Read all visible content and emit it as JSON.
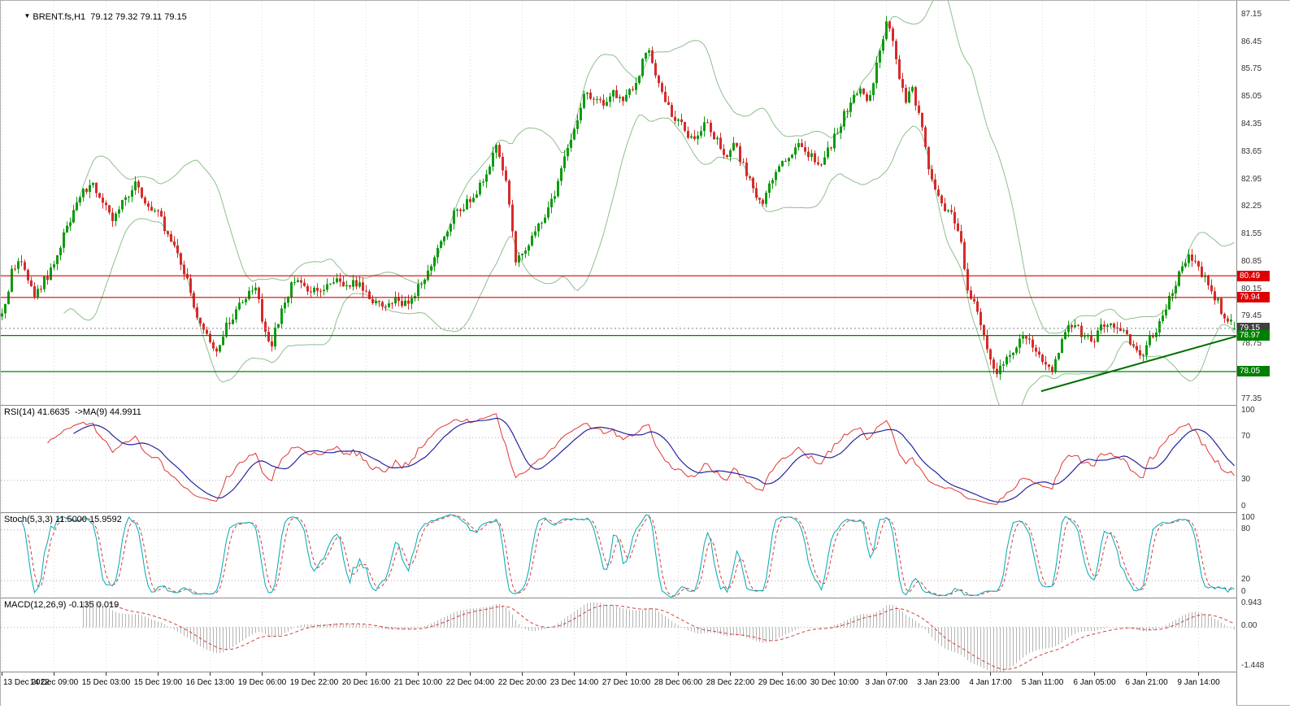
{
  "header": {
    "symbol_line": "BRENT.fs,H1  79.12 79.32 79.11 79.15",
    "dropdown_icon": "▼"
  },
  "colors": {
    "candle_up": "#0f9b10",
    "candle_down": "#d62b2b",
    "bollinger": "#8fbf8f",
    "red_hline": "#dd0000",
    "green_hline": "#008000",
    "trendline": "#007000",
    "rsi_line": "#e03636",
    "rsi_ma": "#24249c",
    "stoch_k": "#00a8b0",
    "stoch_d": "#d04040",
    "macd_hist": "#b4b4b4",
    "macd_signal": "#d04040",
    "grid": "#dcdcdc",
    "current_price_badge": "#3f3f3f"
  },
  "price_axis": {
    "min": 77.2,
    "max": 87.5,
    "labels": [
      "87.15",
      "86.45",
      "85.75",
      "85.05",
      "84.35",
      "83.65",
      "82.95",
      "82.25",
      "81.55",
      "80.85",
      "80.15",
      "79.45",
      "78.75",
      "78.05",
      "77.35"
    ],
    "badges": [
      {
        "text": "80.49",
        "price": 80.49,
        "type": "red"
      },
      {
        "text": "79.94",
        "price": 79.94,
        "type": "red"
      },
      {
        "text": "79.15",
        "price": 79.15,
        "type": "dark"
      },
      {
        "text": "78.97",
        "price": 78.97,
        "type": "green"
      },
      {
        "text": "78.05",
        "price": 78.05,
        "type": "green"
      }
    ]
  },
  "time_axis": {
    "labels": [
      [
        0,
        "13 Dec 2022"
      ],
      [
        16,
        "14 Dec 09:00"
      ],
      [
        32,
        "15 Dec 03:00"
      ],
      [
        48,
        "15 Dec 19:00"
      ],
      [
        64,
        "16 Dec 13:00"
      ],
      [
        80,
        "19 Dec 06:00"
      ],
      [
        96,
        "19 Dec 22:00"
      ],
      [
        112,
        "20 Dec 16:00"
      ],
      [
        128,
        "21 Dec 10:00"
      ],
      [
        144,
        "22 Dec 04:00"
      ],
      [
        160,
        "22 Dec 20:00"
      ],
      [
        176,
        "23 Dec 14:00"
      ],
      [
        192,
        "27 Dec 10:00"
      ],
      [
        208,
        "28 Dec 06:00"
      ],
      [
        224,
        "28 Dec 22:00"
      ],
      [
        240,
        "29 Dec 16:00"
      ],
      [
        256,
        "30 Dec 10:00"
      ],
      [
        272,
        "3 Jan 07:00"
      ],
      [
        288,
        "3 Jan 23:00"
      ],
      [
        304,
        "4 Jan 17:00"
      ],
      [
        320,
        "5 Jan 11:00"
      ],
      [
        336,
        "6 Jan 05:00"
      ],
      [
        352,
        "6 Jan 21:00"
      ],
      [
        368,
        "9 Jan 14:00"
      ]
    ]
  },
  "panels": {
    "rsi": {
      "title": "RSI(14) 41.6635  ->MA(9) 44.9911",
      "min": 0,
      "max": 100,
      "levels": [
        70,
        30
      ],
      "scale_labels": [
        [
          100,
          "100"
        ],
        [
          70,
          "70"
        ],
        [
          30,
          "30"
        ],
        [
          0,
          "0"
        ]
      ]
    },
    "stoch": {
      "title": "Stoch(5,3,3) 11.5000 15.9592",
      "min": 0,
      "max": 100,
      "levels": [
        80,
        20
      ],
      "scale_labels": [
        [
          100,
          "100"
        ],
        [
          80,
          "80"
        ],
        [
          20,
          "20"
        ],
        [
          0,
          "0"
        ]
      ]
    },
    "macd": {
      "title": "MACD(12,26,9) -0.135 0.019",
      "min": -1.448,
      "max": 0.943,
      "levels": [
        0
      ],
      "scale_labels": [
        [
          0.943,
          "0.943"
        ],
        [
          0,
          "0.00"
        ],
        [
          -1.448,
          "-1.448"
        ]
      ]
    }
  },
  "chart_data": {
    "type": "candlestick",
    "symbol": "BRENT.fs",
    "timeframe": "H1",
    "ohlc_current": {
      "open": 79.12,
      "high": 79.32,
      "low": 79.11,
      "close": 79.15
    },
    "bars": 380,
    "price_anchors": [
      [
        0,
        79.45
      ],
      [
        3,
        80.55
      ],
      [
        6,
        80.9
      ],
      [
        10,
        79.9
      ],
      [
        14,
        80.5
      ],
      [
        18,
        81.3
      ],
      [
        22,
        82.2
      ],
      [
        27,
        82.9
      ],
      [
        30,
        82.55
      ],
      [
        34,
        82.0
      ],
      [
        38,
        82.5
      ],
      [
        41,
        82.8
      ],
      [
        44,
        82.3
      ],
      [
        48,
        82.1
      ],
      [
        52,
        81.4
      ],
      [
        56,
        80.6
      ],
      [
        60,
        79.5
      ],
      [
        63,
        78.95
      ],
      [
        66,
        78.55
      ],
      [
        69,
        79.2
      ],
      [
        72,
        79.6
      ],
      [
        75,
        80.0
      ],
      [
        78,
        80.2
      ],
      [
        81,
        79.0
      ],
      [
        83,
        78.8
      ],
      [
        86,
        79.6
      ],
      [
        90,
        80.45
      ],
      [
        94,
        80.0
      ],
      [
        98,
        80.15
      ],
      [
        102,
        80.35
      ],
      [
        106,
        80.2
      ],
      [
        110,
        80.35
      ],
      [
        114,
        79.9
      ],
      [
        118,
        79.65
      ],
      [
        121,
        79.9
      ],
      [
        124,
        79.8
      ],
      [
        127,
        80.0
      ],
      [
        131,
        80.6
      ],
      [
        135,
        81.3
      ],
      [
        139,
        82.1
      ],
      [
        143,
        82.35
      ],
      [
        146,
        82.6
      ],
      [
        149,
        83.2
      ],
      [
        152,
        83.7
      ],
      [
        155,
        82.9
      ],
      [
        158,
        80.9
      ],
      [
        161,
        81.2
      ],
      [
        164,
        81.7
      ],
      [
        167,
        81.95
      ],
      [
        170,
        82.6
      ],
      [
        173,
        83.5
      ],
      [
        176,
        84.2
      ],
      [
        179,
        85.0
      ],
      [
        182,
        85.1
      ],
      [
        185,
        84.8
      ],
      [
        188,
        85.1
      ],
      [
        191,
        84.9
      ],
      [
        194,
        85.3
      ],
      [
        197,
        85.9
      ],
      [
        199,
        86.3
      ],
      [
        201,
        85.6
      ],
      [
        204,
        84.9
      ],
      [
        207,
        84.5
      ],
      [
        210,
        84.2
      ],
      [
        213,
        83.9
      ],
      [
        216,
        84.4
      ],
      [
        219,
        84.1
      ],
      [
        222,
        83.5
      ],
      [
        225,
        83.9
      ],
      [
        228,
        83.3
      ],
      [
        231,
        82.7
      ],
      [
        234,
        82.4
      ],
      [
        237,
        82.9
      ],
      [
        240,
        83.4
      ],
      [
        243,
        83.7
      ],
      [
        246,
        83.9
      ],
      [
        249,
        83.5
      ],
      [
        252,
        83.4
      ],
      [
        255,
        83.8
      ],
      [
        258,
        84.4
      ],
      [
        261,
        84.9
      ],
      [
        264,
        85.3
      ],
      [
        266,
        84.9
      ],
      [
        268,
        85.4
      ],
      [
        270,
        86.2
      ],
      [
        272,
        86.9
      ],
      [
        274,
        86.5
      ],
      [
        276,
        85.6
      ],
      [
        278,
        85.0
      ],
      [
        280,
        85.3
      ],
      [
        283,
        84.2
      ],
      [
        286,
        82.9
      ],
      [
        289,
        82.3
      ],
      [
        292,
        82.0
      ],
      [
        295,
        81.3
      ],
      [
        297,
        80.0
      ],
      [
        300,
        79.6
      ],
      [
        303,
        78.6
      ],
      [
        306,
        78.0
      ],
      [
        309,
        78.4
      ],
      [
        312,
        78.7
      ],
      [
        315,
        78.9
      ],
      [
        318,
        78.6
      ],
      [
        321,
        78.3
      ],
      [
        323,
        78.1
      ],
      [
        326,
        78.9
      ],
      [
        329,
        79.3
      ],
      [
        332,
        79.0
      ],
      [
        335,
        78.8
      ],
      [
        338,
        79.2
      ],
      [
        341,
        79.4
      ],
      [
        344,
        79.1
      ],
      [
        347,
        78.8
      ],
      [
        350,
        78.4
      ],
      [
        353,
        78.9
      ],
      [
        356,
        79.3
      ],
      [
        359,
        79.9
      ],
      [
        362,
        80.5
      ],
      [
        364,
        80.9
      ],
      [
        366,
        81.0
      ],
      [
        368,
        80.7
      ],
      [
        370,
        80.4
      ],
      [
        372,
        80.1
      ],
      [
        374,
        79.8
      ],
      [
        376,
        79.5
      ],
      [
        378,
        79.3
      ],
      [
        379,
        79.15
      ]
    ],
    "hlines": [
      {
        "price": 80.49,
        "color": "red"
      },
      {
        "price": 79.94,
        "color": "red"
      },
      {
        "price": 78.97,
        "color": "green"
      },
      {
        "price": 78.05,
        "color": "green"
      }
    ],
    "current_price": 79.15,
    "trendline": {
      "b1": 320,
      "p1": 77.55,
      "b2": 380,
      "p2": 78.95
    },
    "bollinger": {
      "period": 20,
      "deviation": 2
    },
    "indicators": {
      "rsi": {
        "period": 14,
        "ma_period": 9,
        "value": 41.6635,
        "ma_value": 44.9911
      },
      "stoch": {
        "k": 5,
        "d": 3,
        "slowing": 3,
        "value": 11.5,
        "signal": 15.9592
      },
      "macd": {
        "fast": 12,
        "slow": 26,
        "signal_period": 9,
        "value": -0.135,
        "signal_value": 0.019
      }
    }
  }
}
